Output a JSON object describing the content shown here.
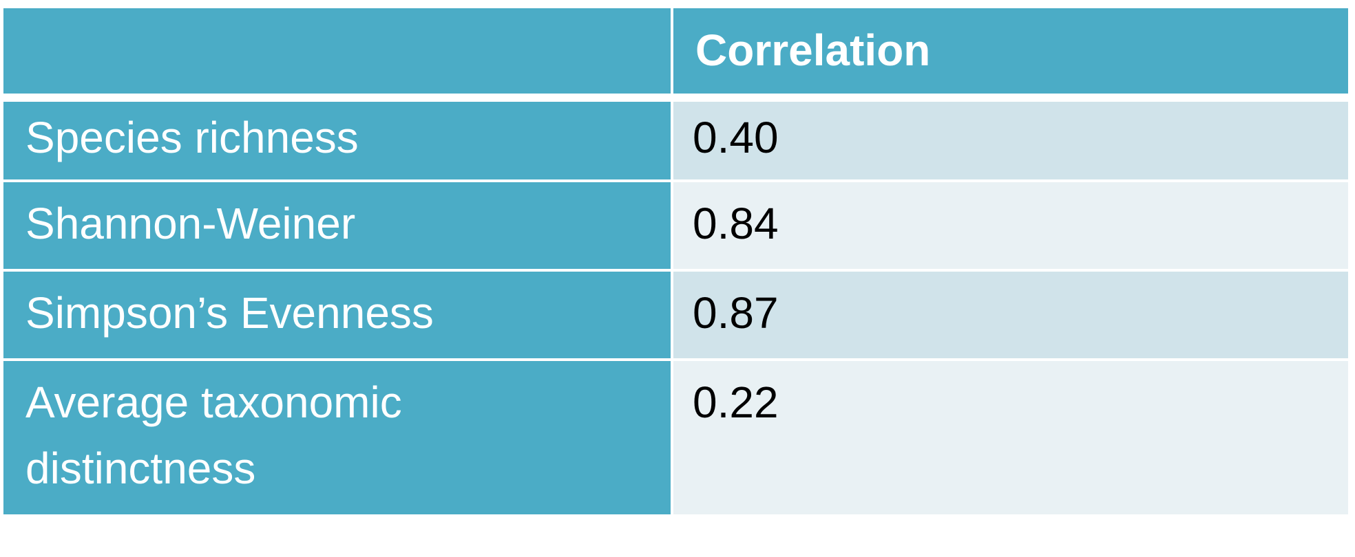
{
  "table": {
    "header": {
      "label_col": "",
      "value_col": "Correlation"
    },
    "rows": [
      {
        "label": "Species richness",
        "value": "0.40"
      },
      {
        "label": "Shannon-Weiner",
        "value": "0.84"
      },
      {
        "label": "Simpson’s Evenness",
        "value": "0.87"
      },
      {
        "label": "Average taxonomic distinctness",
        "value": "0.22"
      }
    ]
  },
  "colors": {
    "header_bg": "#4bacc6",
    "label_bg": "#4bacc6",
    "row_shade_a": "#d0e3ea",
    "row_shade_b": "#e9f1f4"
  }
}
